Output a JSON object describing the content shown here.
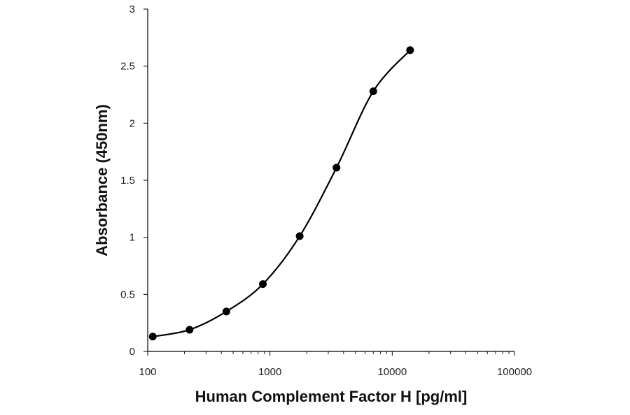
{
  "chart_data": {
    "type": "scatter",
    "title": "",
    "xlabel": "Human Complement Factor H [pg/ml]",
    "ylabel": "Absorbance (450nm)",
    "xscale": "log",
    "xlim": [
      100,
      100000
    ],
    "ylim": [
      0,
      3
    ],
    "grid": false,
    "legend": "none",
    "x_ticks": [
      "100",
      "1000",
      "10000",
      "100000"
    ],
    "y_ticks": [
      "0",
      "0.5",
      "1",
      "1.5",
      "2",
      "2.5",
      "3"
    ],
    "series": [
      {
        "x": [
          110,
          220,
          440,
          875,
          1750,
          3500,
          7000,
          14000
        ],
        "y": [
          0.13,
          0.19,
          0.35,
          0.59,
          1.01,
          1.61,
          2.28,
          2.64
        ],
        "marker": "circle",
        "line": "smooth",
        "color": "#000000"
      }
    ]
  }
}
